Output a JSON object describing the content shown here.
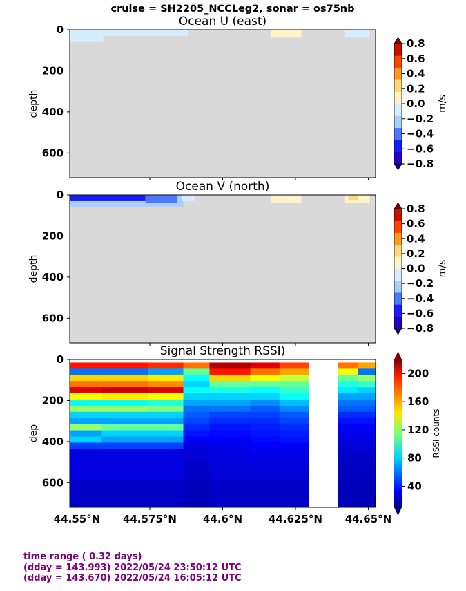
{
  "header": {
    "title": "cruise = SH2205_NCCLeg2,  sonar = os75nb"
  },
  "palette": {
    "no_data": "#d9d9d9",
    "velocity_levels": [
      "#2600c8",
      "#1a1aff",
      "#4a78ff",
      "#a8d0ff",
      "#d6ecff",
      "#fff4c8",
      "#ffd77a",
      "#ff9922",
      "#ff4400",
      "#c81000"
    ]
  },
  "chart_data": [
    {
      "type": "heatmap",
      "title": "Ocean U (east)",
      "ylabel": "depth",
      "ylim": [
        720,
        0
      ],
      "yticks": [
        0,
        200,
        400,
        600
      ],
      "xlim": [
        44.5475,
        44.6525
      ],
      "colorbar": {
        "label": "m/s",
        "ticks": [
          "0.8",
          "0.6",
          "0.4",
          "0.2",
          "0.0",
          "−0.2",
          "−0.4",
          "−0.6",
          "−0.8"
        ],
        "range": [
          -0.8,
          0.8
        ]
      },
      "data_coverage": "values only in upper ~60 m; remainder no data",
      "segments": [
        {
          "lat_start": 44.5475,
          "lat_end": 44.559,
          "depth_bottom": 60,
          "value": -0.1
        },
        {
          "lat_start": 44.559,
          "lat_end": 44.588,
          "depth_bottom": 30,
          "value": -0.1
        },
        {
          "lat_start": 44.6165,
          "lat_end": 44.627,
          "depth_bottom": 38,
          "value": 0.1
        },
        {
          "lat_start": 44.642,
          "lat_end": 44.6505,
          "depth_bottom": 38,
          "value": -0.1
        }
      ]
    },
    {
      "type": "heatmap",
      "title": "Ocean V (north)",
      "ylabel": "depth",
      "ylim": [
        720,
        0
      ],
      "yticks": [
        0,
        200,
        400,
        600
      ],
      "xlim": [
        44.5475,
        44.6525
      ],
      "colorbar": {
        "label": "m/s",
        "ticks": [
          "0.8",
          "0.6",
          "0.4",
          "0.2",
          "0.0",
          "−0.2",
          "−0.4",
          "−0.6",
          "−0.8"
        ],
        "range": [
          -0.8,
          0.8
        ]
      },
      "data_coverage": "values only in upper ~60 m; remainder no data",
      "segments": [
        {
          "lat_start": 44.5475,
          "lat_end": 44.5865,
          "depth_bottom": 60,
          "value": -0.3
        },
        {
          "lat_start": 44.5475,
          "lat_end": 44.5735,
          "depth_bottom": 30,
          "value": -0.55
        },
        {
          "lat_start": 44.5735,
          "lat_end": 44.5845,
          "depth_bottom": 38,
          "value": -0.45
        },
        {
          "lat_start": 44.586,
          "lat_end": 44.5905,
          "depth_bottom": 30,
          "value": -0.05
        },
        {
          "lat_start": 44.6165,
          "lat_end": 44.627,
          "depth_bottom": 40,
          "value": 0.1
        },
        {
          "lat_start": 44.642,
          "lat_end": 44.6505,
          "depth_bottom": 40,
          "value": 0.1
        },
        {
          "lat_start": 44.6435,
          "lat_end": 44.6465,
          "depth_bottom": 25,
          "value": 0.3
        }
      ]
    },
    {
      "type": "heatmap",
      "title": "Signal Strength RSSI)",
      "ylabel": "dep",
      "ylim": [
        720,
        0
      ],
      "yticks": [
        0,
        200,
        400,
        600
      ],
      "xlim": [
        44.5475,
        44.6525
      ],
      "xticks": [
        "44.55°N",
        "44.575°N",
        "44.6°N",
        "44.625°N",
        "44.65°N"
      ],
      "xtick_values": [
        44.55,
        44.575,
        44.6,
        44.625,
        44.65
      ],
      "gap": [
        44.6295,
        44.6395
      ],
      "colorbar": {
        "label": "RSSI counts",
        "ticks": [
          "200",
          "160",
          "120",
          "80",
          "40"
        ],
        "range": [
          10,
          220
        ]
      },
      "profiles": [
        {
          "lat_start": 44.5475,
          "lat_end": 44.5585,
          "rssi": [
            190,
            60,
            150,
            170,
            200,
            140,
            90,
            120,
            80,
            70,
            120,
            70,
            80,
            50,
            30,
            30,
            30,
            30,
            30,
            25,
            25,
            25,
            25,
            25
          ]
        },
        {
          "lat_start": 44.5585,
          "lat_end": 44.5745,
          "rssi": [
            190,
            60,
            150,
            170,
            205,
            145,
            90,
            120,
            80,
            70,
            110,
            80,
            70,
            50,
            30,
            30,
            30,
            30,
            30,
            25,
            25,
            25,
            25,
            25
          ]
        },
        {
          "lat_start": 44.5745,
          "lat_end": 44.5865,
          "rssi": [
            185,
            70,
            145,
            165,
            200,
            140,
            95,
            115,
            80,
            70,
            110,
            80,
            70,
            50,
            30,
            30,
            30,
            30,
            30,
            25,
            25,
            25,
            25,
            25
          ]
        },
        {
          "lat_start": 44.5865,
          "lat_end": 44.5955,
          "rssi": [
            170,
            110,
            90,
            80,
            90,
            80,
            70,
            60,
            55,
            50,
            45,
            40,
            35,
            30,
            28,
            28,
            25,
            25,
            25,
            22,
            22,
            22,
            22,
            22
          ]
        },
        {
          "lat_start": 44.5955,
          "lat_end": 44.6095,
          "rssi": [
            210,
            190,
            150,
            110,
            95,
            80,
            70,
            60,
            50,
            45,
            40,
            38,
            35,
            32,
            30,
            30,
            28,
            28,
            28,
            25,
            25,
            25,
            25,
            25
          ]
        },
        {
          "lat_start": 44.6095,
          "lat_end": 44.6195,
          "rssi": [
            200,
            170,
            140,
            110,
            90,
            80,
            65,
            55,
            50,
            45,
            42,
            40,
            38,
            35,
            32,
            30,
            30,
            28,
            28,
            25,
            25,
            25,
            25,
            25
          ]
        },
        {
          "lat_start": 44.6195,
          "lat_end": 44.6295,
          "rssi": [
            180,
            160,
            130,
            110,
            100,
            90,
            75,
            65,
            55,
            50,
            45,
            42,
            40,
            35,
            32,
            30,
            30,
            28,
            28,
            25,
            25,
            25,
            25,
            25
          ]
        },
        {
          "lat_start": 44.6395,
          "lat_end": 44.6465,
          "rssi": [
            170,
            140,
            110,
            95,
            85,
            70,
            60,
            55,
            45,
            40,
            35,
            32,
            30,
            28,
            26,
            25,
            25,
            24,
            24,
            22,
            22,
            22,
            22,
            22
          ]
        },
        {
          "lat_start": 44.6465,
          "lat_end": 44.6525,
          "rssi": [
            160,
            60,
            120,
            100,
            80,
            70,
            60,
            55,
            45,
            40,
            35,
            32,
            30,
            28,
            26,
            25,
            25,
            24,
            24,
            22,
            22,
            22,
            22,
            22
          ]
        }
      ],
      "bin_depth": 30
    }
  ],
  "footer": {
    "line1": "time range ( 0.32 days)",
    "line2": "(dday = 143.993) 2022/05/24 23:50:12 UTC",
    "line3": "(dday = 143.670) 2022/05/24 16:05:12 UTC"
  }
}
